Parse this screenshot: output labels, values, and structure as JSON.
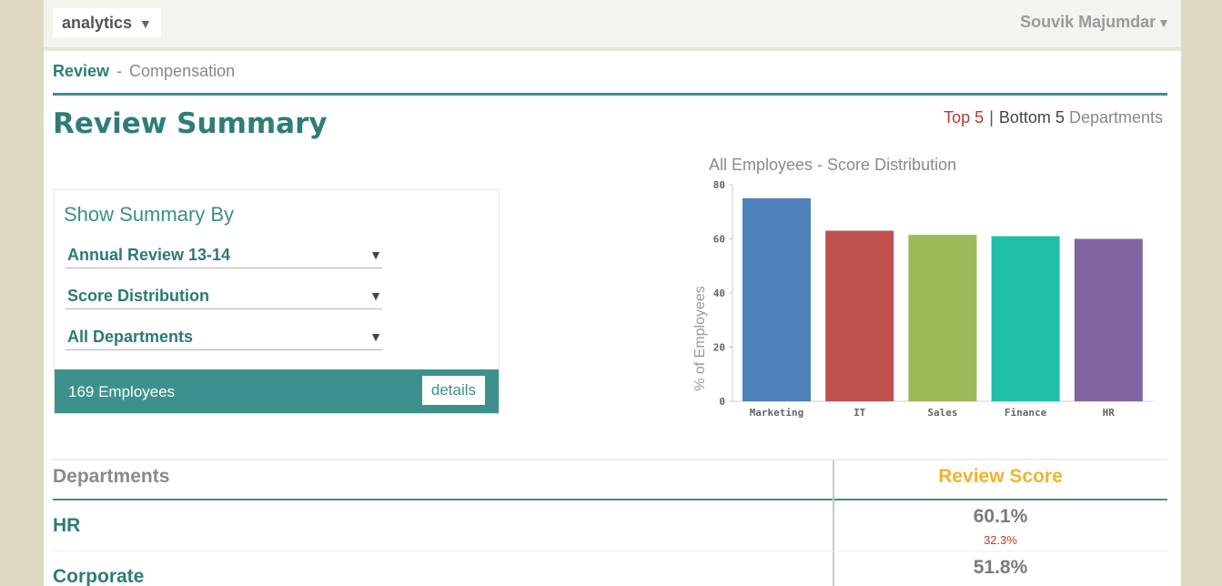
{
  "header": {
    "app_name": "analytics",
    "user_name": "Souvik Majumdar"
  },
  "breadcrumb": {
    "active": "Review",
    "separator": "-",
    "other": "Compensation"
  },
  "page": {
    "title": "Review Summary",
    "filter": {
      "top": "Top 5",
      "divider": "|",
      "bottom": "Bottom 5",
      "suffix": "Departments"
    }
  },
  "summary": {
    "title": "Show Summary By",
    "review_period": "Annual Review 13-14",
    "metric": "Score Distribution",
    "department": "All Departments",
    "employee_count": "169 Employees",
    "details_label": "details"
  },
  "chart_data": {
    "type": "bar",
    "title": "All Employees - Score Distribution",
    "ylabel": "% of Employees",
    "xlabel": "",
    "categories": [
      "Marketing",
      "IT",
      "Sales",
      "Finance",
      "HR"
    ],
    "values": [
      75,
      63,
      61.5,
      61,
      60
    ],
    "colors": [
      "#4f81bd",
      "#c0504d",
      "#9bbb59",
      "#20c0a8",
      "#8064a2"
    ],
    "ylim": [
      0,
      80
    ],
    "yticks": [
      0,
      20,
      40,
      60,
      80
    ],
    "grid": false
  },
  "table": {
    "col_department": "Departments",
    "col_score": "Review Score",
    "rows": [
      {
        "department": "HR",
        "score": "60.1%",
        "sub": "32.3%"
      },
      {
        "department": "Corporate",
        "score": "51.8%"
      }
    ]
  },
  "colors": {
    "accent": "#3c8f89",
    "score_header": "#f0b429",
    "negative": "#c0392b"
  }
}
